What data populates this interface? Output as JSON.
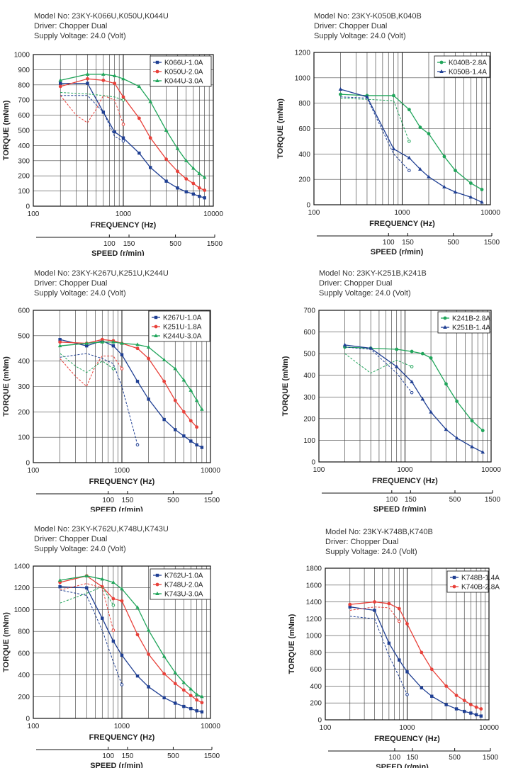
{
  "colors": {
    "blue": "#1f3f93",
    "red": "#e8413a",
    "green": "#21a55b",
    "grid": "#222",
    "border": "#111"
  },
  "chart_data": [
    {
      "type": "line",
      "info": {
        "model": "Model No: 23KY-K066U,K050U,K044U",
        "driver": "Driver: Chopper Dual",
        "supply": "Supply Voltage: 24.0 (Volt)"
      },
      "xlabel": "FREQUENCY (Hz)",
      "ylabel": "TORQUE (mNm)",
      "speed_label": "SPEED (r/min)",
      "xscale": "log",
      "xlim": [
        100,
        10000
      ],
      "ylim": [
        0,
        1000
      ],
      "yticks": [
        0,
        100,
        200,
        300,
        400,
        500,
        600,
        700,
        800,
        900,
        1000
      ],
      "xtick_labels": [
        "100",
        "1000",
        "10000"
      ],
      "speed_ticks": [
        "100",
        "150",
        "500",
        "1500"
      ],
      "legend_position": "top-right",
      "series": [
        {
          "name": "K066U-1.0A",
          "color": "blue",
          "marker": "square",
          "x": [
            200,
            400,
            600,
            800,
            1000,
            1500,
            2000,
            3000,
            4000,
            5000,
            6000,
            7000,
            8000
          ],
          "y": [
            810,
            810,
            620,
            490,
            450,
            350,
            255,
            165,
            120,
            95,
            80,
            65,
            55
          ],
          "pullin_x": [
            200,
            400,
            600,
            800,
            1000
          ],
          "pullin_y": [
            730,
            730,
            620,
            460,
            430
          ]
        },
        {
          "name": "K050U-2.0A",
          "color": "red",
          "marker": "circle",
          "x": [
            200,
            400,
            600,
            800,
            1000,
            1500,
            2000,
            3000,
            4000,
            5000,
            6000,
            7000,
            8000
          ],
          "y": [
            790,
            840,
            830,
            810,
            720,
            580,
            450,
            310,
            230,
            180,
            150,
            120,
            105
          ],
          "pullin_x": [
            200,
            300,
            400,
            500,
            600,
            800,
            1000
          ],
          "pullin_y": [
            730,
            600,
            550,
            640,
            730,
            700,
            540
          ]
        },
        {
          "name": "K044U-3.0A",
          "color": "green",
          "marker": "triangle",
          "x": [
            200,
            400,
            600,
            800,
            1000,
            1500,
            2000,
            3000,
            4000,
            5000,
            6000,
            7000,
            8000
          ],
          "y": [
            830,
            870,
            870,
            860,
            840,
            790,
            690,
            500,
            380,
            300,
            250,
            215,
            190
          ],
          "pullin_x": [
            200,
            400,
            600,
            800,
            1000
          ],
          "pullin_y": [
            750,
            740,
            730,
            720,
            700
          ]
        }
      ]
    },
    {
      "type": "line",
      "info": {
        "model": "Model No: 23KY-K050B,K040B",
        "driver": "Driver: Chopper Dual",
        "supply": "Supply Voltage: 24.0 (Volt)"
      },
      "xlabel": "FREQUENCY (Hz)",
      "ylabel": "TORQUE (mNm)",
      "speed_label": "SPEED (r/min)",
      "xscale": "log",
      "xlim": [
        100,
        10000
      ],
      "ylim": [
        0,
        1200
      ],
      "yticks": [
        0,
        200,
        400,
        600,
        800,
        1000,
        1200
      ],
      "xtick_labels": [
        "100",
        "1000",
        "10000"
      ],
      "speed_ticks": [
        "100",
        "150",
        "500",
        "1500"
      ],
      "legend_position": "top-right",
      "series": [
        {
          "name": "K040B-2.8A",
          "color": "green",
          "marker": "circle",
          "x": [
            200,
            400,
            800,
            1200,
            1600,
            2000,
            3000,
            4000,
            6000,
            8000
          ],
          "y": [
            870,
            860,
            860,
            750,
            610,
            560,
            380,
            270,
            170,
            120
          ],
          "pullin_x": [
            200,
            400,
            800,
            1200
          ],
          "pullin_y": [
            840,
            830,
            820,
            500
          ]
        },
        {
          "name": "K050B-1.4A",
          "color": "blue",
          "marker": "triangle",
          "x": [
            200,
            400,
            800,
            1200,
            1600,
            2000,
            3000,
            4000,
            6000,
            8000
          ],
          "y": [
            910,
            850,
            440,
            370,
            280,
            220,
            140,
            100,
            60,
            20
          ],
          "pullin_x": [
            200,
            400,
            800,
            1200
          ],
          "pullin_y": [
            850,
            840,
            400,
            270
          ]
        }
      ]
    },
    {
      "type": "line",
      "info": {
        "model": "Model No: 23KY-K267U,K251U,K244U",
        "driver": "Driver: Chopper Dual",
        "supply": "Supply Voltage: 24.0 (Volt)"
      },
      "xlabel": "FREQUENCY (Hz)",
      "ylabel": "TORQUE (mNm)",
      "speed_label": "SPEED (r/min)",
      "xscale": "log",
      "xlim": [
        100,
        10000
      ],
      "ylim": [
        0,
        600
      ],
      "yticks": [
        0,
        100,
        200,
        300,
        400,
        500,
        600
      ],
      "xtick_labels": [
        "100",
        "1000",
        "10000"
      ],
      "speed_ticks": [
        "100",
        "150",
        "500",
        "1500"
      ],
      "legend_position": "top-right",
      "series": [
        {
          "name": "K267U-1.0A",
          "color": "blue",
          "marker": "square",
          "x": [
            200,
            400,
            600,
            800,
            1000,
            1500,
            2000,
            3000,
            4000,
            5000,
            6000,
            7000,
            8000
          ],
          "y": [
            485,
            460,
            480,
            460,
            425,
            320,
            250,
            170,
            130,
            105,
            85,
            70,
            60
          ],
          "pullin_x": [
            200,
            400,
            600,
            800,
            1000,
            1500
          ],
          "pullin_y": [
            415,
            430,
            410,
            390,
            300,
            70
          ]
        },
        {
          "name": "K251U-1.8A",
          "color": "red",
          "marker": "circle",
          "x": [
            200,
            400,
            600,
            800,
            1000,
            1500,
            2000,
            3000,
            4000,
            5000,
            6000,
            7000
          ],
          "y": [
            475,
            470,
            485,
            480,
            470,
            450,
            410,
            320,
            245,
            200,
            165,
            140
          ],
          "pullin_x": [
            200,
            300,
            400,
            500,
            600,
            800,
            1000
          ],
          "pullin_y": [
            410,
            340,
            300,
            380,
            420,
            420,
            370
          ]
        },
        {
          "name": "K244U-3.0A",
          "color": "green",
          "marker": "triangle",
          "x": [
            200,
            400,
            600,
            800,
            1000,
            1500,
            2000,
            3000,
            4000,
            5000,
            6000,
            7000,
            8000
          ],
          "y": [
            460,
            470,
            475,
            475,
            470,
            465,
            455,
            405,
            370,
            325,
            285,
            245,
            210
          ],
          "pullin_x": [
            200,
            300,
            400,
            600,
            800
          ],
          "pullin_y": [
            430,
            380,
            355,
            400,
            370
          ]
        }
      ]
    },
    {
      "type": "line",
      "info": {
        "model": "Model No: 23KY-K251B,K241B",
        "driver": "Driver: Chopper Dual",
        "supply": "Supply Voltage: 24.0 (Volt)"
      },
      "xlabel": "FREQUENCY (Hz)",
      "ylabel": "TORQUE (mNm)",
      "speed_label": "SPEED (r/min)",
      "xscale": "log",
      "xlim": [
        100,
        10000
      ],
      "ylim": [
        0,
        700
      ],
      "yticks": [
        0,
        100,
        200,
        300,
        400,
        500,
        600,
        700
      ],
      "xtick_labels": [
        "100",
        "1000",
        "10000"
      ],
      "speed_ticks": [
        "100",
        "150",
        "500",
        "1500"
      ],
      "legend_position": "top-right",
      "series": [
        {
          "name": "K241B-2.8A",
          "color": "green",
          "marker": "circle",
          "x": [
            200,
            400,
            800,
            1200,
            1600,
            2000,
            3000,
            4000,
            6000,
            8000
          ],
          "y": [
            530,
            525,
            520,
            510,
            500,
            480,
            360,
            280,
            190,
            145
          ],
          "pullin_x": [
            200,
            400,
            800,
            1200
          ],
          "pullin_y": [
            500,
            410,
            470,
            440
          ]
        },
        {
          "name": "K251B-1.4A",
          "color": "blue",
          "marker": "triangle",
          "x": [
            200,
            400,
            800,
            1200,
            1600,
            2000,
            3000,
            4000,
            6000,
            8000
          ],
          "y": [
            540,
            525,
            440,
            370,
            290,
            230,
            150,
            110,
            70,
            45
          ],
          "pullin_x": [
            200,
            400,
            800,
            1200
          ],
          "pullin_y": [
            530,
            520,
            410,
            320
          ]
        }
      ]
    },
    {
      "type": "line",
      "info": {
        "model": "Model No: 23KY-K762U,K748U,K743U",
        "driver": "Driver: Chopper Dual",
        "supply": "Supply Voltage: 24.0 (Volt)"
      },
      "xlabel": "FREQUENCY (Hz)",
      "ylabel": "TORQUE (mNm)",
      "speed_label": "SPEED (r/min)",
      "xscale": "log",
      "xlim": [
        100,
        10000
      ],
      "ylim": [
        0,
        1400
      ],
      "yticks": [
        0,
        200,
        400,
        600,
        800,
        1000,
        1200,
        1400
      ],
      "xtick_labels": [
        "100",
        "1000",
        "10000"
      ],
      "speed_ticks": [
        "100",
        "150",
        "500",
        "1500"
      ],
      "legend_position": "top-right",
      "series": [
        {
          "name": "K762U-1.0A",
          "color": "blue",
          "marker": "square",
          "x": [
            200,
            400,
            600,
            800,
            1000,
            1500,
            2000,
            3000,
            4000,
            5000,
            6000,
            7000,
            8000
          ],
          "y": [
            1210,
            1200,
            920,
            710,
            580,
            390,
            290,
            190,
            140,
            110,
            90,
            70,
            60
          ],
          "pullin_x": [
            200,
            400,
            600,
            800,
            1000
          ],
          "pullin_y": [
            1180,
            1130,
            810,
            520,
            310
          ]
        },
        {
          "name": "K748U-2.0A",
          "color": "red",
          "marker": "circle",
          "x": [
            200,
            400,
            600,
            800,
            1000,
            1500,
            2000,
            3000,
            4000,
            5000,
            6000,
            7000,
            8000
          ],
          "y": [
            1250,
            1310,
            1210,
            1100,
            1080,
            770,
            590,
            410,
            320,
            260,
            210,
            170,
            145
          ],
          "pullin_x": [
            200,
            400,
            600,
            800
          ],
          "pullin_y": [
            1180,
            1240,
            1200,
            810
          ]
        },
        {
          "name": "K743U-3.0A",
          "color": "green",
          "marker": "triangle",
          "x": [
            200,
            400,
            600,
            800,
            1000,
            1500,
            2000,
            3000,
            4000,
            5000,
            6000,
            7000,
            8000
          ],
          "y": [
            1270,
            1310,
            1280,
            1250,
            1190,
            1020,
            810,
            570,
            420,
            330,
            270,
            220,
            200
          ],
          "pullin_x": [
            200,
            400,
            600,
            800
          ],
          "pullin_y": [
            1060,
            1150,
            1210,
            1040
          ]
        }
      ]
    },
    {
      "type": "line",
      "info": {
        "model": "Model No: 23KY-K748B,K740B",
        "driver": "Driver: Chopper Dual",
        "supply": "Supply Voltage: 24.0 (Volt)"
      },
      "xlabel": "FREQUENCY (Hz)",
      "ylabel": "TORQUE (mNm)",
      "speed_label": "SPEED (r/min)",
      "xscale": "log",
      "xlim": [
        100,
        10000
      ],
      "ylim": [
        0,
        1800
      ],
      "yticks": [
        0,
        200,
        400,
        600,
        800,
        1000,
        1200,
        1400,
        1600,
        1800
      ],
      "xtick_labels": [
        "100",
        "1000",
        "10000"
      ],
      "speed_ticks": [
        "100",
        "150",
        "500",
        "1500"
      ],
      "legend_position": "top-right",
      "series": [
        {
          "name": "K748B-1.4A",
          "color": "blue",
          "marker": "square",
          "x": [
            200,
            400,
            600,
            800,
            1000,
            1500,
            2000,
            3000,
            4000,
            5000,
            6000,
            7000,
            8000
          ],
          "y": [
            1340,
            1300,
            910,
            710,
            570,
            380,
            280,
            180,
            130,
            100,
            80,
            60,
            45
          ],
          "pullin_x": [
            200,
            400,
            600,
            800,
            1000
          ],
          "pullin_y": [
            1230,
            1200,
            760,
            510,
            300
          ]
        },
        {
          "name": "K740B-2.8A",
          "color": "red",
          "marker": "circle",
          "x": [
            200,
            400,
            600,
            800,
            1000,
            1500,
            2000,
            3000,
            4000,
            5000,
            6000,
            7000,
            8000
          ],
          "y": [
            1370,
            1400,
            1380,
            1320,
            1140,
            800,
            600,
            400,
            290,
            230,
            180,
            150,
            130
          ],
          "pullin_x": [
            200,
            400,
            600,
            800
          ],
          "pullin_y": [
            1300,
            1340,
            1330,
            1170
          ]
        }
      ]
    }
  ]
}
